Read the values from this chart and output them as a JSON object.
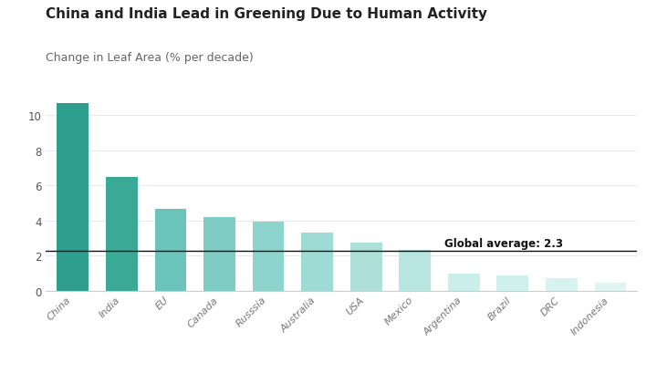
{
  "title": "China and India Lead in Greening Due to Human Activity",
  "subtitle": "Change in Leaf Area (% per decade)",
  "categories": [
    "China",
    "India",
    "EU",
    "Canada",
    "Russsia",
    "Australia",
    "USA",
    "Mexico",
    "Argentina",
    "Brazil",
    "DRC",
    "Indonesia"
  ],
  "values": [
    10.7,
    6.5,
    4.65,
    4.2,
    3.95,
    3.3,
    2.72,
    2.35,
    1.0,
    0.85,
    0.73,
    0.45
  ],
  "bar_colors": [
    "#2e9e8f",
    "#3aaa96",
    "#6bc4ba",
    "#7eccc4",
    "#8dd4cc",
    "#9edbd4",
    "#aee0da",
    "#b8e5e0",
    "#caeee9",
    "#d0f0ec",
    "#d8f2ef",
    "#dff5f2"
  ],
  "global_avg": 2.3,
  "global_avg_label": "Global average: 2.3",
  "ylim": [
    0,
    11.5
  ],
  "yticks": [
    0,
    2,
    4,
    6,
    8,
    10
  ],
  "background_color": "#ffffff",
  "title_fontsize": 11,
  "subtitle_fontsize": 9,
  "tick_label_color": "#777777",
  "ytick_label_color": "#555555",
  "avg_line_color": "#111111",
  "avg_label_fontsize": 8.5
}
